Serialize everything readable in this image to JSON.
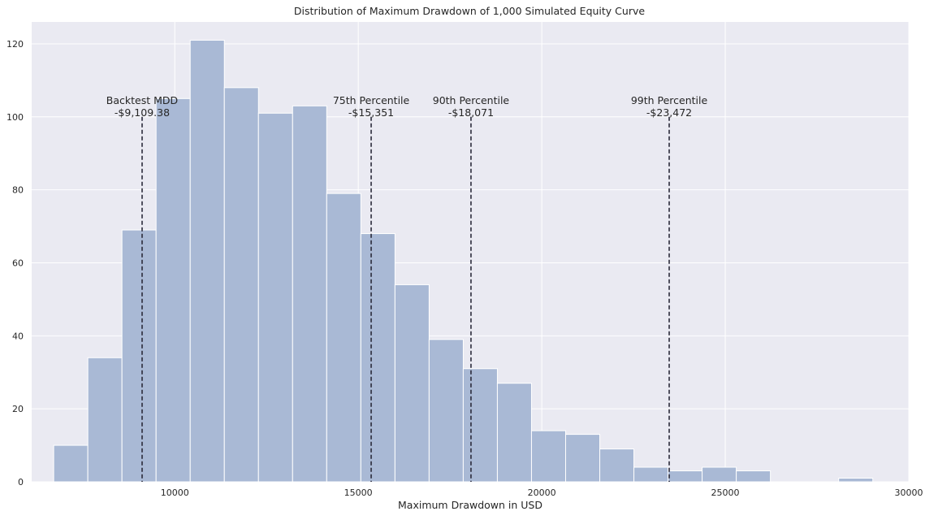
{
  "chart_data": {
    "type": "bar",
    "title": "Distribution of Maximum Drawdown of 1,000 Simulated Equity Curve",
    "xlabel": "Maximum Drawdown in USD",
    "ylabel": "",
    "xlim": [
      6100,
      30000
    ],
    "ylim": [
      0,
      126
    ],
    "xticks": [
      10000,
      15000,
      20000,
      25000,
      30000
    ],
    "yticks": [
      0,
      20,
      40,
      60,
      80,
      100,
      120
    ],
    "grid": true,
    "bins": [
      {
        "start": 6700,
        "end": 7630,
        "count": 10
      },
      {
        "start": 7630,
        "end": 8560,
        "count": 34
      },
      {
        "start": 8560,
        "end": 9490,
        "count": 69
      },
      {
        "start": 9490,
        "end": 10420,
        "count": 105
      },
      {
        "start": 10420,
        "end": 11350,
        "count": 121
      },
      {
        "start": 11350,
        "end": 12280,
        "count": 108
      },
      {
        "start": 12280,
        "end": 13210,
        "count": 101
      },
      {
        "start": 13210,
        "end": 14140,
        "count": 103
      },
      {
        "start": 14140,
        "end": 15070,
        "count": 79
      },
      {
        "start": 15070,
        "end": 16000,
        "count": 68
      },
      {
        "start": 16000,
        "end": 16930,
        "count": 54
      },
      {
        "start": 16930,
        "end": 17860,
        "count": 39
      },
      {
        "start": 17860,
        "end": 18790,
        "count": 31
      },
      {
        "start": 18790,
        "end": 19720,
        "count": 27
      },
      {
        "start": 19720,
        "end": 20650,
        "count": 14
      },
      {
        "start": 20650,
        "end": 21580,
        "count": 13
      },
      {
        "start": 21580,
        "end": 22510,
        "count": 9
      },
      {
        "start": 22510,
        "end": 23440,
        "count": 4
      },
      {
        "start": 23440,
        "end": 24370,
        "count": 3
      },
      {
        "start": 24370,
        "end": 25300,
        "count": 4
      },
      {
        "start": 25300,
        "end": 26230,
        "count": 3
      },
      {
        "start": 26230,
        "end": 27160,
        "count": 0
      },
      {
        "start": 27160,
        "end": 28090,
        "count": 0
      },
      {
        "start": 28090,
        "end": 29020,
        "count": 1
      }
    ],
    "reference_lines": [
      {
        "x": 9109.38,
        "label": "Backtest MDD",
        "value_label": "-$9,109.38"
      },
      {
        "x": 15351,
        "label": "75th Percentile",
        "value_label": "-$15,351"
      },
      {
        "x": 18071,
        "label": "90th Percentile",
        "value_label": "-$18,071"
      },
      {
        "x": 23472,
        "label": "99th Percentile",
        "value_label": "-$23,472"
      }
    ],
    "colors": {
      "background": "#EAEAF2",
      "grid": "#FFFFFF",
      "bar": "#A9B9D5",
      "bar_edge": "#FFFFFF",
      "ref_line": "#2A2A3A",
      "text": "#262626"
    }
  }
}
